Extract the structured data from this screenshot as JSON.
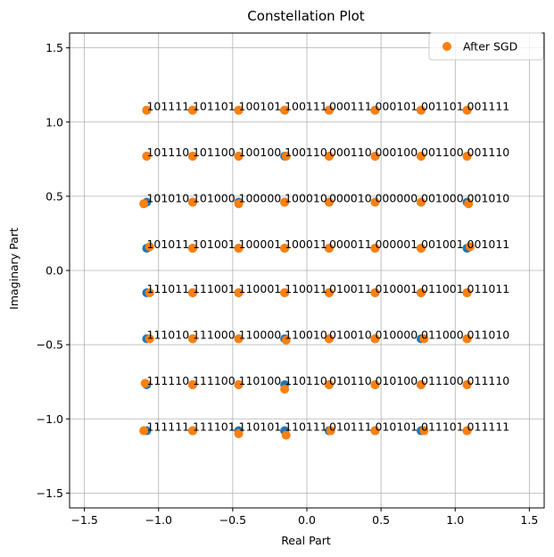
{
  "chart_data": {
    "type": "scatter",
    "title": "Constellation Plot",
    "xlabel": "Real Part",
    "ylabel": "Imaginary Part",
    "xlim": [
      -1.6,
      1.6
    ],
    "ylim": [
      -1.6,
      1.6
    ],
    "xticks": [
      -1.5,
      -1.0,
      -0.5,
      0.0,
      0.5,
      1.0,
      1.5
    ],
    "yticks": [
      -1.5,
      -1.0,
      -0.5,
      0.0,
      0.5,
      1.0,
      1.5
    ],
    "xtick_labels": [
      "−1.5",
      "−1.0",
      "−0.5",
      "0.0",
      "0.5",
      "1.0",
      "1.5"
    ],
    "ytick_labels": [
      "−1.5",
      "−1.0",
      "−0.5",
      "0.0",
      "0.5",
      "1.0",
      "1.5"
    ],
    "grid": true,
    "legend_position": "top-right",
    "series_colors": {
      "initial": "#1f77b4",
      "after": "#ff7f0e"
    },
    "legend": [
      {
        "name": "After SGD",
        "color": "#ff7f0e"
      }
    ],
    "grid_levels": [
      -1.08,
      -0.77,
      -0.46,
      -0.15,
      0.15,
      0.46,
      0.77,
      1.08
    ],
    "labels": [
      [
        "111111",
        "111101",
        "110101",
        "110111",
        "010111",
        "010101",
        "011101",
        "011111"
      ],
      [
        "111110",
        "111100",
        "110100",
        "110110",
        "010110",
        "010100",
        "011100",
        "011110"
      ],
      [
        "111010",
        "111000",
        "110000",
        "110010",
        "010010",
        "010000",
        "011000",
        "011010"
      ],
      [
        "111011",
        "111001",
        "110001",
        "110011",
        "010011",
        "010001",
        "011001",
        "011011"
      ],
      [
        "101011",
        "101001",
        "100001",
        "100011",
        "000011",
        "000001",
        "001001",
        "001011"
      ],
      [
        "101010",
        "101000",
        "100000",
        "100010",
        "000010",
        "000000",
        "001000",
        "001010"
      ],
      [
        "101110",
        "101100",
        "100100",
        "100110",
        "000110",
        "000100",
        "001100",
        "001110"
      ],
      [
        "101111",
        "101101",
        "100101",
        "100111",
        "000111",
        "000101",
        "001101",
        "001111"
      ]
    ],
    "offsets": [
      [
        [
          -0.02,
          0.0
        ],
        [
          0.0,
          0.0
        ],
        [
          0.0,
          -0.02
        ],
        [
          0.01,
          -0.03
        ],
        [
          0.01,
          0.0
        ],
        [
          0.0,
          0.0
        ],
        [
          0.02,
          0.0
        ],
        [
          0.0,
          0.0
        ]
      ],
      [
        [
          -0.01,
          0.01
        ],
        [
          0.0,
          0.0
        ],
        [
          0.0,
          0.0
        ],
        [
          0.0,
          -0.03
        ],
        [
          0.0,
          0.0
        ],
        [
          0.0,
          0.0
        ],
        [
          0.0,
          0.0
        ],
        [
          0.0,
          0.0
        ]
      ],
      [
        [
          0.02,
          0.0
        ],
        [
          0.0,
          0.0
        ],
        [
          0.0,
          0.0
        ],
        [
          0.01,
          -0.01
        ],
        [
          0.0,
          0.0
        ],
        [
          0.0,
          0.0
        ],
        [
          0.02,
          0.0
        ],
        [
          0.0,
          0.0
        ]
      ],
      [
        [
          0.02,
          0.0
        ],
        [
          0.0,
          0.0
        ],
        [
          0.0,
          0.0
        ],
        [
          0.0,
          0.0
        ],
        [
          0.0,
          0.0
        ],
        [
          0.0,
          0.0
        ],
        [
          0.0,
          0.0
        ],
        [
          0.0,
          0.0
        ]
      ],
      [
        [
          0.02,
          0.01
        ],
        [
          0.0,
          0.0
        ],
        [
          0.0,
          0.0
        ],
        [
          0.0,
          0.0
        ],
        [
          0.0,
          0.0
        ],
        [
          0.0,
          0.0
        ],
        [
          0.0,
          0.0
        ],
        [
          0.02,
          0.01
        ]
      ],
      [
        [
          -0.02,
          -0.01
        ],
        [
          0.0,
          0.0
        ],
        [
          0.0,
          -0.01
        ],
        [
          0.0,
          0.0
        ],
        [
          0.0,
          0.0
        ],
        [
          0.0,
          0.0
        ],
        [
          0.0,
          0.0
        ],
        [
          0.01,
          -0.01
        ]
      ],
      [
        [
          0.0,
          0.0
        ],
        [
          0.0,
          0.0
        ],
        [
          0.0,
          0.0
        ],
        [
          0.01,
          0.0
        ],
        [
          0.0,
          0.0
        ],
        [
          0.0,
          0.0
        ],
        [
          0.0,
          0.0
        ],
        [
          0.0,
          0.0
        ]
      ],
      [
        [
          0.0,
          0.0
        ],
        [
          0.0,
          0.0
        ],
        [
          0.0,
          0.0
        ],
        [
          0.0,
          0.0
        ],
        [
          0.0,
          0.0
        ],
        [
          0.0,
          0.0
        ],
        [
          0.0,
          0.0
        ],
        [
          0.0,
          0.0
        ]
      ]
    ]
  }
}
